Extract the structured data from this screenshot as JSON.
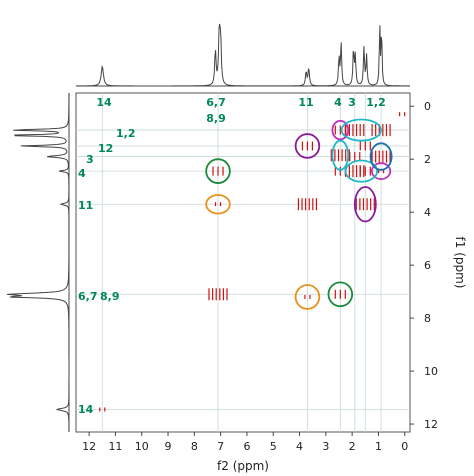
{
  "chart_data": {
    "type": "scatter",
    "title": "",
    "xlabel": "f2 (ppm)",
    "ylabel": "f1 (ppm)",
    "xlim": [
      12.5,
      -0.2
    ],
    "ylim": [
      -0.5,
      12.3
    ],
    "x_ticks": [
      "12",
      "11",
      "10",
      "9",
      "8",
      "7",
      "6",
      "5",
      "4",
      "3",
      "2",
      "1",
      "0"
    ],
    "y_ticks": [
      "0",
      "2",
      "4",
      "6",
      "8",
      "10",
      "12"
    ],
    "top_peak_labels": [
      "14",
      "6,7",
      "8,9",
      "11",
      "4",
      "3",
      "1,2"
    ],
    "left_peak_labels": [
      "1,2",
      "12",
      "3",
      "4",
      "11",
      "6,7",
      "8,9",
      "14"
    ],
    "colors": {
      "peak": "#cc1111",
      "annotation": "#00875a",
      "spectrum": "#444444",
      "grid": "#c8d8d8"
    },
    "cross_peaks": [
      {
        "x": 11.5,
        "y": 11.45,
        "size": "s"
      },
      {
        "x": 7.1,
        "y": 2.45,
        "size": "m"
      },
      {
        "x": 7.1,
        "y": 3.7,
        "size": "s"
      },
      {
        "x": 7.1,
        "y": 7.1,
        "size": "l"
      },
      {
        "x": 3.7,
        "y": 1.5,
        "size": "m"
      },
      {
        "x": 3.7,
        "y": 3.7,
        "size": "l"
      },
      {
        "x": 3.7,
        "y": 7.2,
        "size": "s"
      },
      {
        "x": 2.45,
        "y": 0.9,
        "size": "m"
      },
      {
        "x": 2.45,
        "y": 1.85,
        "size": "l"
      },
      {
        "x": 2.45,
        "y": 2.45,
        "size": "m"
      },
      {
        "x": 2.45,
        "y": 7.1,
        "size": "m"
      },
      {
        "x": 1.9,
        "y": 0.9,
        "size": "l"
      },
      {
        "x": 1.9,
        "y": 1.9,
        "size": "m"
      },
      {
        "x": 1.9,
        "y": 2.45,
        "size": "l"
      },
      {
        "x": 1.5,
        "y": 1.5,
        "size": "m"
      },
      {
        "x": 1.5,
        "y": 2.45,
        "size": "m"
      },
      {
        "x": 1.5,
        "y": 3.7,
        "size": "l"
      },
      {
        "x": 0.9,
        "y": 0.9,
        "size": "l"
      },
      {
        "x": 0.9,
        "y": 1.9,
        "size": "l"
      },
      {
        "x": 0.9,
        "y": 2.45,
        "size": "s"
      },
      {
        "x": 0.1,
        "y": 0.3,
        "size": "s"
      }
    ],
    "annotations": [
      {
        "shape": "circle",
        "color": "#1a8a3a",
        "x": 7.1,
        "y": 2.45,
        "rx": 0.45,
        "ry": 0.45
      },
      {
        "shape": "circle",
        "color": "#e8901a",
        "x": 7.1,
        "y": 3.7,
        "rx": 0.45,
        "ry": 0.35
      },
      {
        "shape": "circle",
        "color": "#e8901a",
        "x": 3.7,
        "y": 7.2,
        "rx": 0.45,
        "ry": 0.45
      },
      {
        "shape": "circle",
        "color": "#1a8a3a",
        "x": 2.45,
        "y": 7.1,
        "rx": 0.45,
        "ry": 0.45
      },
      {
        "shape": "circle",
        "color": "#8b1a9b",
        "x": 3.7,
        "y": 1.5,
        "rx": 0.45,
        "ry": 0.45
      },
      {
        "shape": "circle",
        "color": "#c030c0",
        "x": 2.45,
        "y": 0.9,
        "rx": 0.3,
        "ry": 0.35
      },
      {
        "shape": "circle",
        "color": "#8b1a9b",
        "x": 1.5,
        "y": 3.7,
        "rx": 0.4,
        "ry": 0.65
      },
      {
        "shape": "circle",
        "color": "#c030c0",
        "x": 0.9,
        "y": 2.45,
        "rx": 0.35,
        "ry": 0.3
      },
      {
        "shape": "circle",
        "color": "#20b8c8",
        "x": 2.45,
        "y": 1.85,
        "rx": 0.3,
        "ry": 0.55
      },
      {
        "shape": "circle",
        "color": "#20b8c8",
        "x": 1.65,
        "y": 0.9,
        "rx": 0.75,
        "ry": 0.4
      },
      {
        "shape": "circle",
        "color": "#20b8c8",
        "x": 1.65,
        "y": 2.45,
        "rx": 0.6,
        "ry": 0.4
      },
      {
        "shape": "circle",
        "color": "#1a70b0",
        "x": 0.9,
        "y": 1.9,
        "rx": 0.4,
        "ry": 0.5
      }
    ],
    "grid": true
  }
}
